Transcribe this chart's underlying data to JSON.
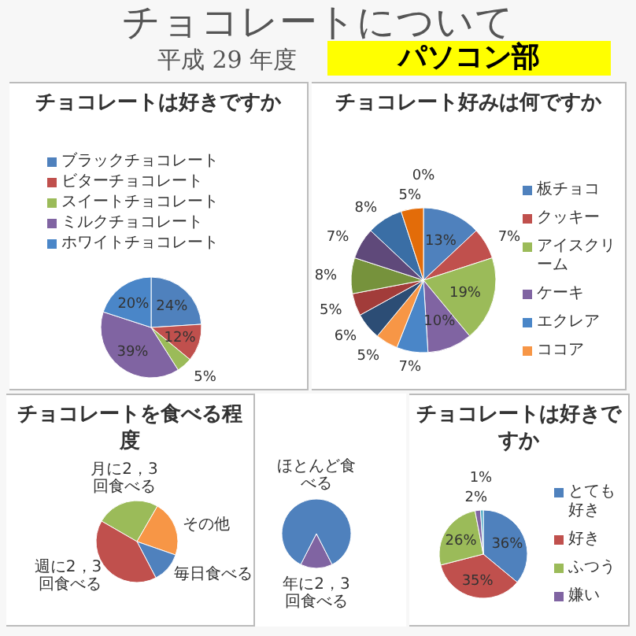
{
  "chart_data": [
    {
      "type": "other",
      "title": "チョコレートについて",
      "subtitle": "平成 29 年度",
      "annotations": [
        "パソコン部"
      ]
    },
    {
      "type": "pie",
      "title": "チョコレートは好きですか",
      "categories": [
        "ブラックチョコレート",
        "ビターチョコレート",
        "スイートチョコレート",
        "ミルクチョコレート",
        "ホワイトチョコレート"
      ],
      "values": [
        24,
        12,
        5,
        39,
        20
      ],
      "colors": [
        "#4f81bd",
        "#c0504d",
        "#9bbb59",
        "#8064a2",
        "#4a86c8"
      ],
      "value_labels": [
        "24%",
        "12%",
        "5%",
        "39%",
        "20%"
      ],
      "legend": "top"
    },
    {
      "type": "pie",
      "title": "チョコレート好みは何ですか",
      "categories": [
        "板チョコ",
        "クッキー",
        "アイスクリーム",
        "ケーキ",
        "エクレア",
        "ココア",
        null,
        null,
        null,
        null,
        null,
        null,
        null
      ],
      "values": [
        13,
        7,
        19,
        10,
        7,
        5,
        6,
        5,
        8,
        7,
        8,
        5,
        0
      ],
      "colors": [
        "#4f81bd",
        "#c0504d",
        "#9bbb59",
        "#8064a2",
        "#4a86c8",
        "#f79646",
        "#2c4d75",
        "#a23c3a",
        "#76923c",
        "#5f497a",
        "#3a6ea5",
        "#e36c09",
        "#729aca"
      ],
      "value_labels": [
        "13%",
        "7%",
        "19%",
        "10%",
        "7%",
        "5%",
        "6%",
        "5%",
        "8%",
        "7%",
        "8%",
        "5%",
        "0%"
      ],
      "legend": "right"
    },
    {
      "type": "pie",
      "title": "チョコレートを食べる程度",
      "categories": [
        "月に2，3回食べる",
        "その他",
        "毎日食べる",
        "週に2，3回食べる"
      ],
      "values": [
        25,
        22,
        12,
        41
      ],
      "colors": [
        "#9bbb59",
        "#f79646",
        "#4f81bd",
        "#c0504d"
      ]
    },
    {
      "type": "pie",
      "categories": [
        "年に2，3回食べる",
        "ほとんど食べる"
      ],
      "values": [
        15,
        85
      ],
      "colors": [
        "#8064a2",
        "#4f81bd"
      ]
    },
    {
      "type": "pie",
      "title": "チョコレートは好きですか",
      "categories": [
        "とても好き",
        "好き",
        "ふつう",
        "嫌い",
        null
      ],
      "values": [
        36,
        35,
        26,
        2,
        1
      ],
      "colors": [
        "#4f81bd",
        "#c0504d",
        "#9bbb59",
        "#8064a2",
        "#4bacc6"
      ],
      "value_labels": [
        "36%",
        "35%",
        "26%",
        "2%",
        "1%"
      ],
      "legend": "right"
    }
  ]
}
